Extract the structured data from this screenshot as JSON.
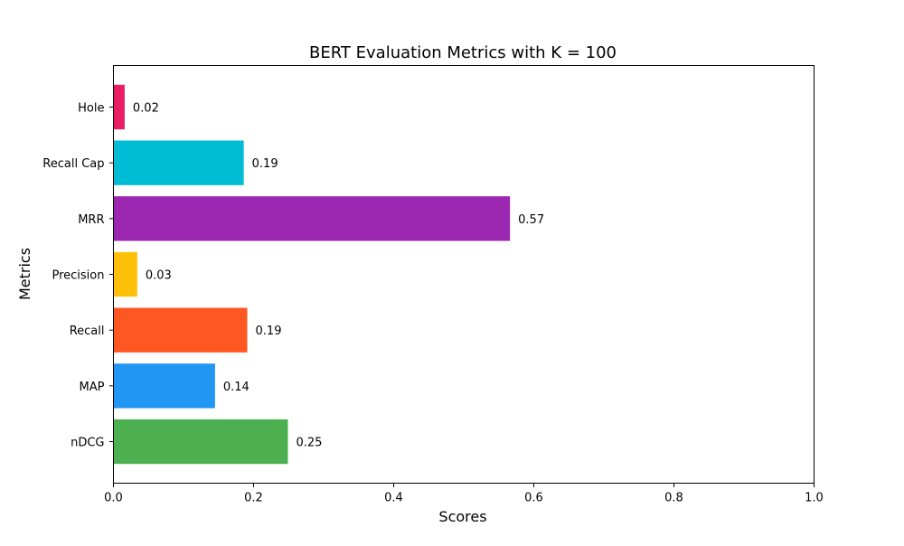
{
  "chart_data": {
    "type": "bar",
    "orientation": "horizontal",
    "title": "BERT Evaluation Metrics with K = 100",
    "xlabel": "Scores",
    "ylabel": "Metrics",
    "categories": [
      "nDCG",
      "MAP",
      "Recall",
      "Precision",
      "MRR",
      "Recall Cap",
      "Hole"
    ],
    "values": [
      0.249,
      0.145,
      0.191,
      0.034,
      0.566,
      0.186,
      0.016
    ],
    "value_labels": [
      "0.25",
      "0.14",
      "0.19",
      "0.03",
      "0.57",
      "0.19",
      "0.02"
    ],
    "colors": [
      "#4caf50",
      "#2196f3",
      "#ff5722",
      "#ffc107",
      "#9c27b0",
      "#00bcd4",
      "#e91e63"
    ],
    "xlim": [
      0,
      1
    ],
    "xticks": [
      0,
      0.2,
      0.4,
      0.6,
      0.8,
      1
    ],
    "xtick_labels": [
      "0.0",
      "0.2",
      "0.4",
      "0.6",
      "0.8",
      "1.0"
    ],
    "grid": false,
    "legend": "none"
  }
}
